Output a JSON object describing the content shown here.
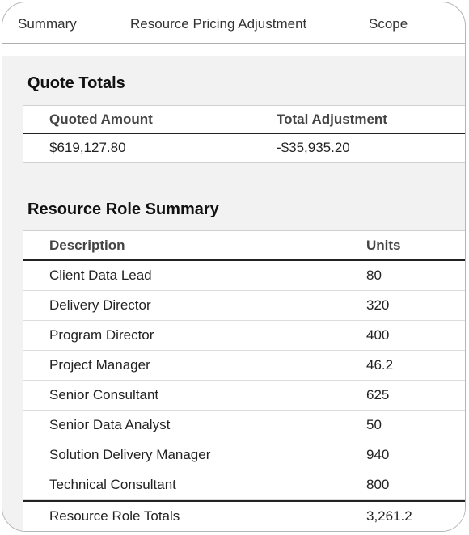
{
  "tabs": [
    "Summary",
    "Resource Pricing Adjustment",
    "Scope"
  ],
  "quote_totals": {
    "title": "Quote Totals",
    "columns": [
      "Quoted Amount",
      "Total Adjustment"
    ],
    "rows": [
      [
        "$619,127.80",
        "-$35,935.20"
      ]
    ]
  },
  "resource_role_summary": {
    "title": "Resource Role Summary",
    "columns": [
      "Description",
      "Units"
    ],
    "rows": [
      [
        "Client Data Lead",
        "80"
      ],
      [
        "Delivery Director",
        "320"
      ],
      [
        "Program Director",
        "400"
      ],
      [
        "Project Manager",
        "46.2"
      ],
      [
        "Senior Consultant",
        "625"
      ],
      [
        "Senior Data Analyst",
        "50"
      ],
      [
        "Solution Delivery Manager",
        "940"
      ],
      [
        "Technical Consultant",
        "800"
      ]
    ],
    "totals": [
      "Resource Role Totals",
      "3,261.2"
    ]
  }
}
